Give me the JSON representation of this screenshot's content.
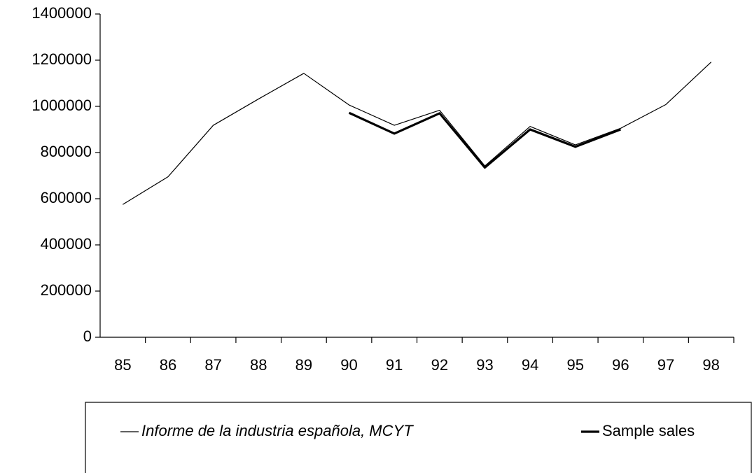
{
  "chart_data": {
    "type": "line",
    "categories": [
      "85",
      "86",
      "87",
      "88",
      "89",
      "90",
      "91",
      "92",
      "93",
      "94",
      "95",
      "96",
      "97",
      "98"
    ],
    "series": [
      {
        "name": "Informe de la industria española, MCYT",
        "color": "#000000",
        "width": 1.2,
        "values": [
          575000,
          695000,
          918000,
          1032000,
          1143000,
          1006000,
          918000,
          983000,
          742000,
          913000,
          833000,
          905000,
          1008000,
          1192000
        ]
      },
      {
        "name": "Sample sales",
        "color": "#000000",
        "width": 3.2,
        "values": [
          null,
          null,
          null,
          null,
          null,
          972000,
          882000,
          970000,
          735000,
          900000,
          825000,
          900000,
          null,
          null
        ]
      }
    ],
    "ylim": [
      0,
      1400000
    ],
    "yticks": [
      0,
      200000,
      400000,
      600000,
      800000,
      1000000,
      1200000,
      1400000
    ],
    "grid": false,
    "legend": "bottom"
  }
}
